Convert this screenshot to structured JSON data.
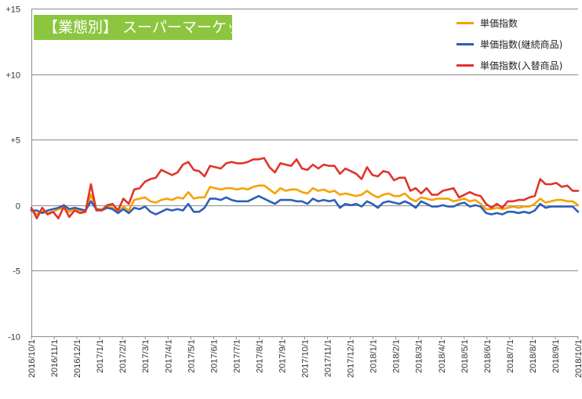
{
  "chart_data": {
    "type": "line",
    "title": "【業態別】 スーパーマーケット",
    "ylim": [
      -10,
      15
    ],
    "yticks": [
      "+15",
      "+10",
      "+5",
      "0",
      "-5",
      "-10"
    ],
    "ytick_values": [
      15,
      10,
      5,
      0,
      -5,
      -10
    ],
    "x_start": "2016/10/1",
    "x_end": "2018/10/1",
    "x_tick_labels": [
      "2016/10/1",
      "2016/11/1",
      "2016/12/1",
      "2017/1/1",
      "2017/2/1",
      "2017/3/1",
      "2017/4/1",
      "2017/5/1",
      "2017/6/1",
      "2017/7/1",
      "2017/8/1",
      "2017/9/1",
      "2017/10/1",
      "2017/11/1",
      "2017/12/1",
      "2018/1/1",
      "2018/2/1",
      "2018/3/1",
      "2018/4/1",
      "2018/5/1",
      "2018/6/1",
      "2018/7/1",
      "2018/8/1",
      "2018/9/1",
      "2018/10/1"
    ],
    "legend_position": "top-right",
    "grid": "horizontal",
    "series": [
      {
        "name": "単価指数",
        "color": "#f5a300",
        "values": [
          -0.3,
          -0.7,
          -0.5,
          -0.6,
          -0.5,
          -0.3,
          -0.2,
          -0.5,
          -0.3,
          -0.4,
          -0.5,
          0.8,
          -0.3,
          -0.3,
          -0.1,
          -0.2,
          -0.5,
          -0.1,
          -0.4,
          0.4,
          0.5,
          0.6,
          0.3,
          0.2,
          0.4,
          0.5,
          0.4,
          0.6,
          0.5,
          1.0,
          0.5,
          0.6,
          0.6,
          1.4,
          1.3,
          1.2,
          1.3,
          1.3,
          1.2,
          1.3,
          1.2,
          1.4,
          1.5,
          1.5,
          1.2,
          0.9,
          1.3,
          1.1,
          1.2,
          1.2,
          1.0,
          0.9,
          1.3,
          1.1,
          1.2,
          1.0,
          1.1,
          0.8,
          0.9,
          0.8,
          0.7,
          0.8,
          1.1,
          0.8,
          0.6,
          0.8,
          0.9,
          0.7,
          0.7,
          0.9,
          0.5,
          0.3,
          0.6,
          0.5,
          0.4,
          0.5,
          0.5,
          0.5,
          0.3,
          0.4,
          0.5,
          0.3,
          0.4,
          0.1,
          -0.3,
          -0.3,
          -0.2,
          -0.3,
          -0.2,
          -0.1,
          -0.2,
          -0.1,
          -0.1,
          0.1,
          0.5,
          0.2,
          0.3,
          0.4,
          0.4,
          0.3,
          0.3,
          0.0
        ]
      },
      {
        "name": "単価指数(継続商品)",
        "color": "#2e5fb7",
        "values": [
          -0.4,
          -0.4,
          -0.6,
          -0.4,
          -0.3,
          -0.2,
          0.0,
          -0.3,
          -0.2,
          -0.3,
          -0.4,
          0.3,
          -0.3,
          -0.4,
          -0.2,
          -0.3,
          -0.6,
          -0.3,
          -0.6,
          -0.2,
          -0.3,
          -0.1,
          -0.5,
          -0.7,
          -0.5,
          -0.3,
          -0.4,
          -0.3,
          -0.4,
          0.1,
          -0.5,
          -0.5,
          -0.2,
          0.5,
          0.5,
          0.4,
          0.6,
          0.4,
          0.3,
          0.3,
          0.3,
          0.5,
          0.7,
          0.5,
          0.3,
          0.1,
          0.4,
          0.4,
          0.4,
          0.3,
          0.3,
          0.1,
          0.5,
          0.3,
          0.4,
          0.3,
          0.4,
          -0.2,
          0.1,
          0.0,
          0.1,
          -0.1,
          0.3,
          0.1,
          -0.2,
          0.2,
          0.3,
          0.2,
          0.1,
          0.3,
          0.1,
          -0.2,
          0.3,
          0.1,
          -0.1,
          -0.1,
          0.0,
          -0.1,
          -0.1,
          0.1,
          0.2,
          -0.1,
          0.0,
          -0.1,
          -0.6,
          -0.7,
          -0.6,
          -0.7,
          -0.5,
          -0.5,
          -0.6,
          -0.5,
          -0.6,
          -0.4,
          0.1,
          -0.2,
          -0.1,
          -0.1,
          -0.1,
          -0.1,
          -0.1,
          -0.5
        ]
      },
      {
        "name": "単価指数(入替商品)",
        "color": "#e0352b",
        "values": [
          -0.2,
          -1.0,
          -0.2,
          -0.7,
          -0.5,
          -1.0,
          -0.1,
          -0.9,
          -0.4,
          -0.6,
          -0.5,
          1.6,
          -0.4,
          -0.4,
          0.0,
          0.1,
          -0.4,
          0.5,
          0.1,
          1.2,
          1.3,
          1.8,
          2.0,
          2.1,
          2.7,
          2.5,
          2.3,
          2.5,
          3.1,
          3.3,
          2.7,
          2.6,
          2.2,
          3.0,
          2.9,
          2.8,
          3.2,
          3.3,
          3.2,
          3.2,
          3.3,
          3.5,
          3.5,
          3.6,
          2.9,
          2.5,
          3.2,
          3.1,
          3.0,
          3.5,
          2.8,
          2.7,
          3.1,
          2.8,
          3.1,
          3.0,
          3.0,
          2.4,
          2.8,
          2.6,
          2.4,
          2.0,
          2.9,
          2.3,
          2.2,
          2.6,
          2.5,
          1.9,
          2.1,
          2.1,
          1.1,
          1.3,
          0.9,
          1.3,
          0.8,
          0.8,
          1.1,
          1.2,
          1.3,
          0.6,
          0.8,
          1.0,
          0.8,
          0.7,
          0.1,
          -0.2,
          0.1,
          -0.2,
          0.3,
          0.3,
          0.4,
          0.4,
          0.6,
          0.7,
          2.0,
          1.6,
          1.6,
          1.7,
          1.4,
          1.5,
          1.1,
          1.1
        ]
      }
    ]
  }
}
